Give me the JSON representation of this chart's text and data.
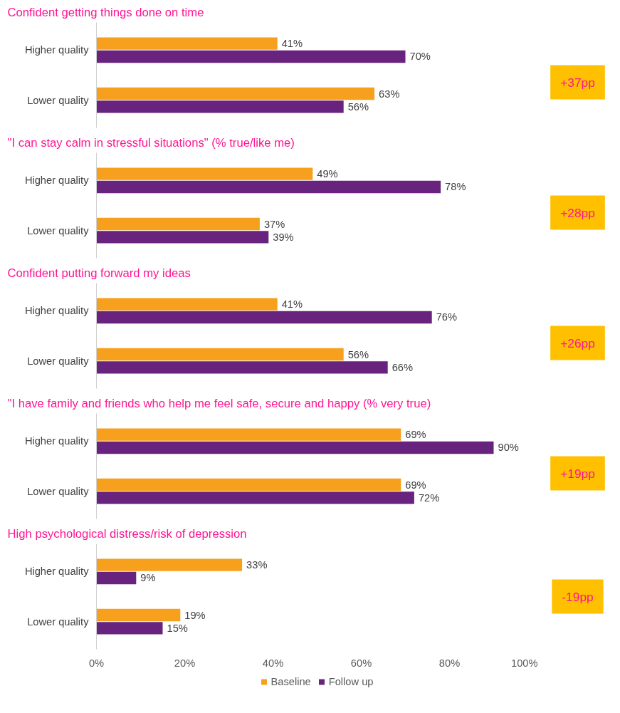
{
  "chart_data": [
    {
      "type": "bar",
      "orientation": "horizontal",
      "title": "Confident getting things done on time",
      "categories": [
        "Higher quality",
        "Lower quality"
      ],
      "series": [
        {
          "color": "#f7a01e",
          "values": [
            41,
            63
          ],
          "value_labels": [
            "41%",
            "63%"
          ]
        },
        {
          "color": "#68237e",
          "values": [
            70,
            56
          ],
          "value_labels": [
            "70%",
            "56%"
          ]
        }
      ],
      "xlim": [
        0,
        100
      ],
      "tick_labels": "y",
      "annotations": [
        "+37pp"
      ]
    },
    {
      "type": "bar",
      "orientation": "horizontal",
      "title": "\"I can stay calm in stressful situations\" (% true/like me)",
      "categories": [
        "Higher quality",
        "Lower quality"
      ],
      "series": [
        {
          "color": "#f7a01e",
          "values": [
            49,
            37
          ],
          "value_labels": [
            "49%",
            "37%"
          ]
        },
        {
          "color": "#68237e",
          "values": [
            78,
            39
          ],
          "value_labels": [
            "78%",
            "39%"
          ]
        }
      ],
      "xlim": [
        0,
        100
      ],
      "tick_labels": "y",
      "annotations": [
        "+28pp"
      ]
    },
    {
      "type": "bar",
      "orientation": "horizontal",
      "title": "Confident putting forward my ideas",
      "categories": [
        "Higher quality",
        "Lower quality"
      ],
      "series": [
        {
          "color": "#f7a01e",
          "values": [
            41,
            56
          ],
          "value_labels": [
            "41%",
            "56%"
          ]
        },
        {
          "color": "#68237e",
          "values": [
            76,
            66
          ],
          "value_labels": [
            "76%",
            "66%"
          ]
        }
      ],
      "xlim": [
        0,
        100
      ],
      "tick_labels": "y",
      "annotations": [
        "+26pp"
      ]
    },
    {
      "type": "bar",
      "orientation": "horizontal",
      "title": "\"I have family and friends who help me feel safe, secure and happy (% very true)",
      "categories": [
        "Higher quality",
        "Lower quality"
      ],
      "series": [
        {
          "color": "#f7a01e",
          "values": [
            69,
            69
          ],
          "value_labels": [
            "69%",
            "69%"
          ]
        },
        {
          "color": "#68237e",
          "values": [
            90,
            72
          ],
          "value_labels": [
            "90%",
            "72%"
          ]
        }
      ],
      "xlim": [
        0,
        100
      ],
      "tick_labels": "y",
      "annotations": [
        "+19pp"
      ]
    },
    {
      "type": "bar",
      "orientation": "horizontal",
      "title": "High psychological distress/risk of depression",
      "categories": [
        "Higher quality",
        "Lower quality"
      ],
      "series": [
        {
          "name": "Baseline",
          "color": "#f7a01e",
          "values": [
            33,
            19
          ],
          "value_labels": [
            "33%",
            "19%"
          ]
        },
        {
          "name": "Follow up",
          "color": "#68237e",
          "values": [
            9,
            15
          ],
          "value_labels": [
            "9%",
            "15%"
          ]
        }
      ],
      "xlim": [
        0,
        100
      ],
      "xticks": [
        {
          "value": 0,
          "label": "0%"
        },
        {
          "value": 20,
          "label": "20%"
        },
        {
          "value": 40,
          "label": "40%"
        },
        {
          "value": 60,
          "label": "60%"
        },
        {
          "value": 80,
          "label": "80%"
        },
        {
          "value": 100,
          "label": "100%"
        }
      ],
      "legend": "bottom",
      "annotations": [
        "-19pp"
      ]
    }
  ]
}
